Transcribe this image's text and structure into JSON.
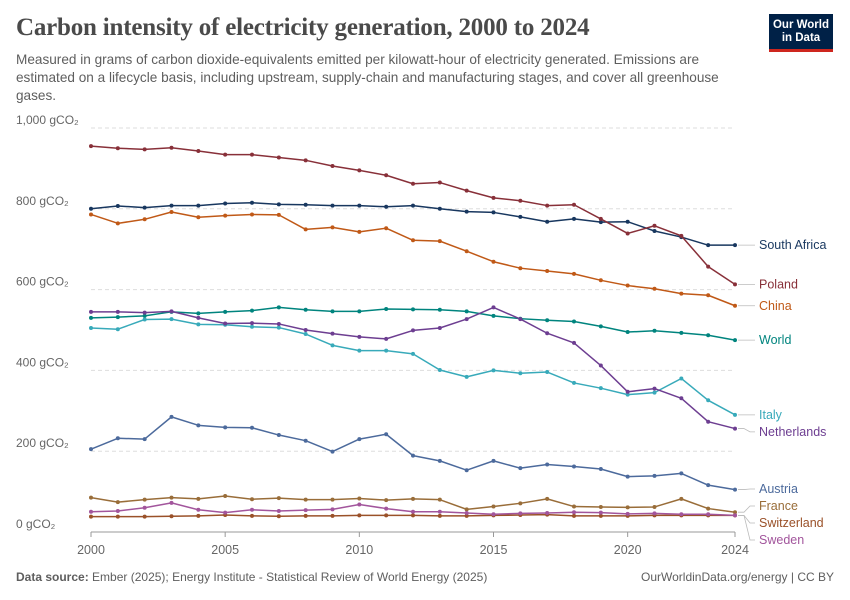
{
  "header": {
    "title": "Carbon intensity of electricity generation, 2000 to 2024",
    "subtitle": "Measured in grams of carbon dioxide-equivalents emitted per kilowatt-hour of electricity generated. Emissions are estimated on a lifecycle basis, including upstream, supply-chain and manufacturing stages, and cover all greenhouse gases.",
    "logo_line1": "Our World",
    "logo_line2": "in Data"
  },
  "footer": {
    "source_label": "Data source:",
    "source_text": "Ember (2025); Energy Institute - Statistical Review of World Energy (2025)",
    "credit": "OurWorldinData.org/energy | CC BY"
  },
  "chart_data": {
    "type": "line",
    "x": [
      2000,
      2001,
      2002,
      2003,
      2004,
      2005,
      2006,
      2007,
      2008,
      2009,
      2010,
      2011,
      2012,
      2013,
      2014,
      2015,
      2016,
      2017,
      2018,
      2019,
      2020,
      2021,
      2022,
      2023,
      2024
    ],
    "xlim": [
      2000,
      2024
    ],
    "ylim": [
      0,
      1000
    ],
    "yticks": [
      0,
      200,
      400,
      600,
      800,
      1000
    ],
    "ytick_labels": [
      "0 gCO₂",
      "200 gCO₂",
      "400 gCO₂",
      "600 gCO₂",
      "800 gCO₂",
      "1,000 gCO₂"
    ],
    "xticks": [
      2000,
      2005,
      2010,
      2015,
      2020,
      2024
    ],
    "xtick_labels": [
      "2000",
      "2005",
      "2010",
      "2015",
      "2020",
      "2024"
    ],
    "grid": "horizontal dashed",
    "legend": "right (direct labels)",
    "series": [
      {
        "name": "South Africa",
        "color": "#18375f",
        "values": [
          800,
          807,
          803,
          808,
          808,
          813,
          815,
          811,
          810,
          808,
          808,
          805,
          808,
          800,
          793,
          791,
          780,
          768,
          775,
          767,
          768,
          745,
          730,
          710,
          710
        ]
      },
      {
        "name": "Poland",
        "color": "#883039",
        "values": [
          955,
          950,
          947,
          951,
          943,
          934,
          934,
          927,
          920,
          906,
          895,
          883,
          862,
          865,
          845,
          827,
          820,
          808,
          810,
          775,
          739,
          758,
          733,
          657,
          613
        ]
      },
      {
        "name": "China",
        "color": "#c05917",
        "values": [
          786,
          764,
          774,
          792,
          779,
          783,
          786,
          785,
          749,
          754,
          743,
          752,
          722,
          720,
          695,
          669,
          653,
          646,
          639,
          623,
          610,
          602,
          590,
          586,
          560
        ]
      },
      {
        "name": "World",
        "color": "#00847e",
        "values": [
          530,
          532,
          535,
          545,
          541,
          545,
          548,
          556,
          550,
          546,
          546,
          552,
          551,
          550,
          546,
          535,
          528,
          524,
          521,
          509,
          495,
          498,
          493,
          487,
          475
        ]
      },
      {
        "name": "Italy",
        "color": "#38aaba",
        "values": [
          505,
          502,
          526,
          527,
          514,
          513,
          508,
          506,
          490,
          462,
          449,
          449,
          441,
          401,
          384,
          400,
          393,
          396,
          369,
          356,
          340,
          345,
          380,
          326,
          290
        ]
      },
      {
        "name": "Netherlands",
        "color": "#6d3e91",
        "values": [
          545,
          545,
          543,
          546,
          530,
          516,
          517,
          515,
          500,
          491,
          483,
          478,
          499,
          505,
          527,
          556,
          527,
          492,
          468,
          412,
          347,
          355,
          331,
          273,
          256
        ]
      },
      {
        "name": "Austria",
        "color": "#4c6a9c",
        "values": [
          205,
          232,
          230,
          285,
          264,
          259,
          258,
          240,
          226,
          199,
          230,
          242,
          189,
          176,
          153,
          176,
          158,
          167,
          162,
          156,
          137,
          139,
          145,
          116,
          105
        ]
      },
      {
        "name": "France",
        "color": "#996d39",
        "values": [
          85,
          74,
          80,
          85,
          82,
          89,
          81,
          84,
          80,
          80,
          83,
          79,
          82,
          80,
          56,
          63,
          71,
          82,
          63,
          62,
          61,
          62,
          82,
          58,
          49
        ]
      },
      {
        "name": "Switzerland",
        "color": "#9a5129",
        "values": [
          38,
          38,
          38,
          39,
          40,
          42,
          40,
          39,
          40,
          40,
          41,
          41,
          41,
          40,
          40,
          41,
          42,
          43,
          40,
          40,
          40,
          41,
          41,
          41,
          41
        ]
      },
      {
        "name": "Sweden",
        "color": "#a2559c",
        "values": [
          50,
          52,
          60,
          72,
          55,
          48,
          55,
          52,
          54,
          56,
          68,
          58,
          50,
          50,
          47,
          44,
          46,
          47,
          49,
          48,
          45,
          46,
          44,
          44,
          41
        ]
      }
    ]
  }
}
